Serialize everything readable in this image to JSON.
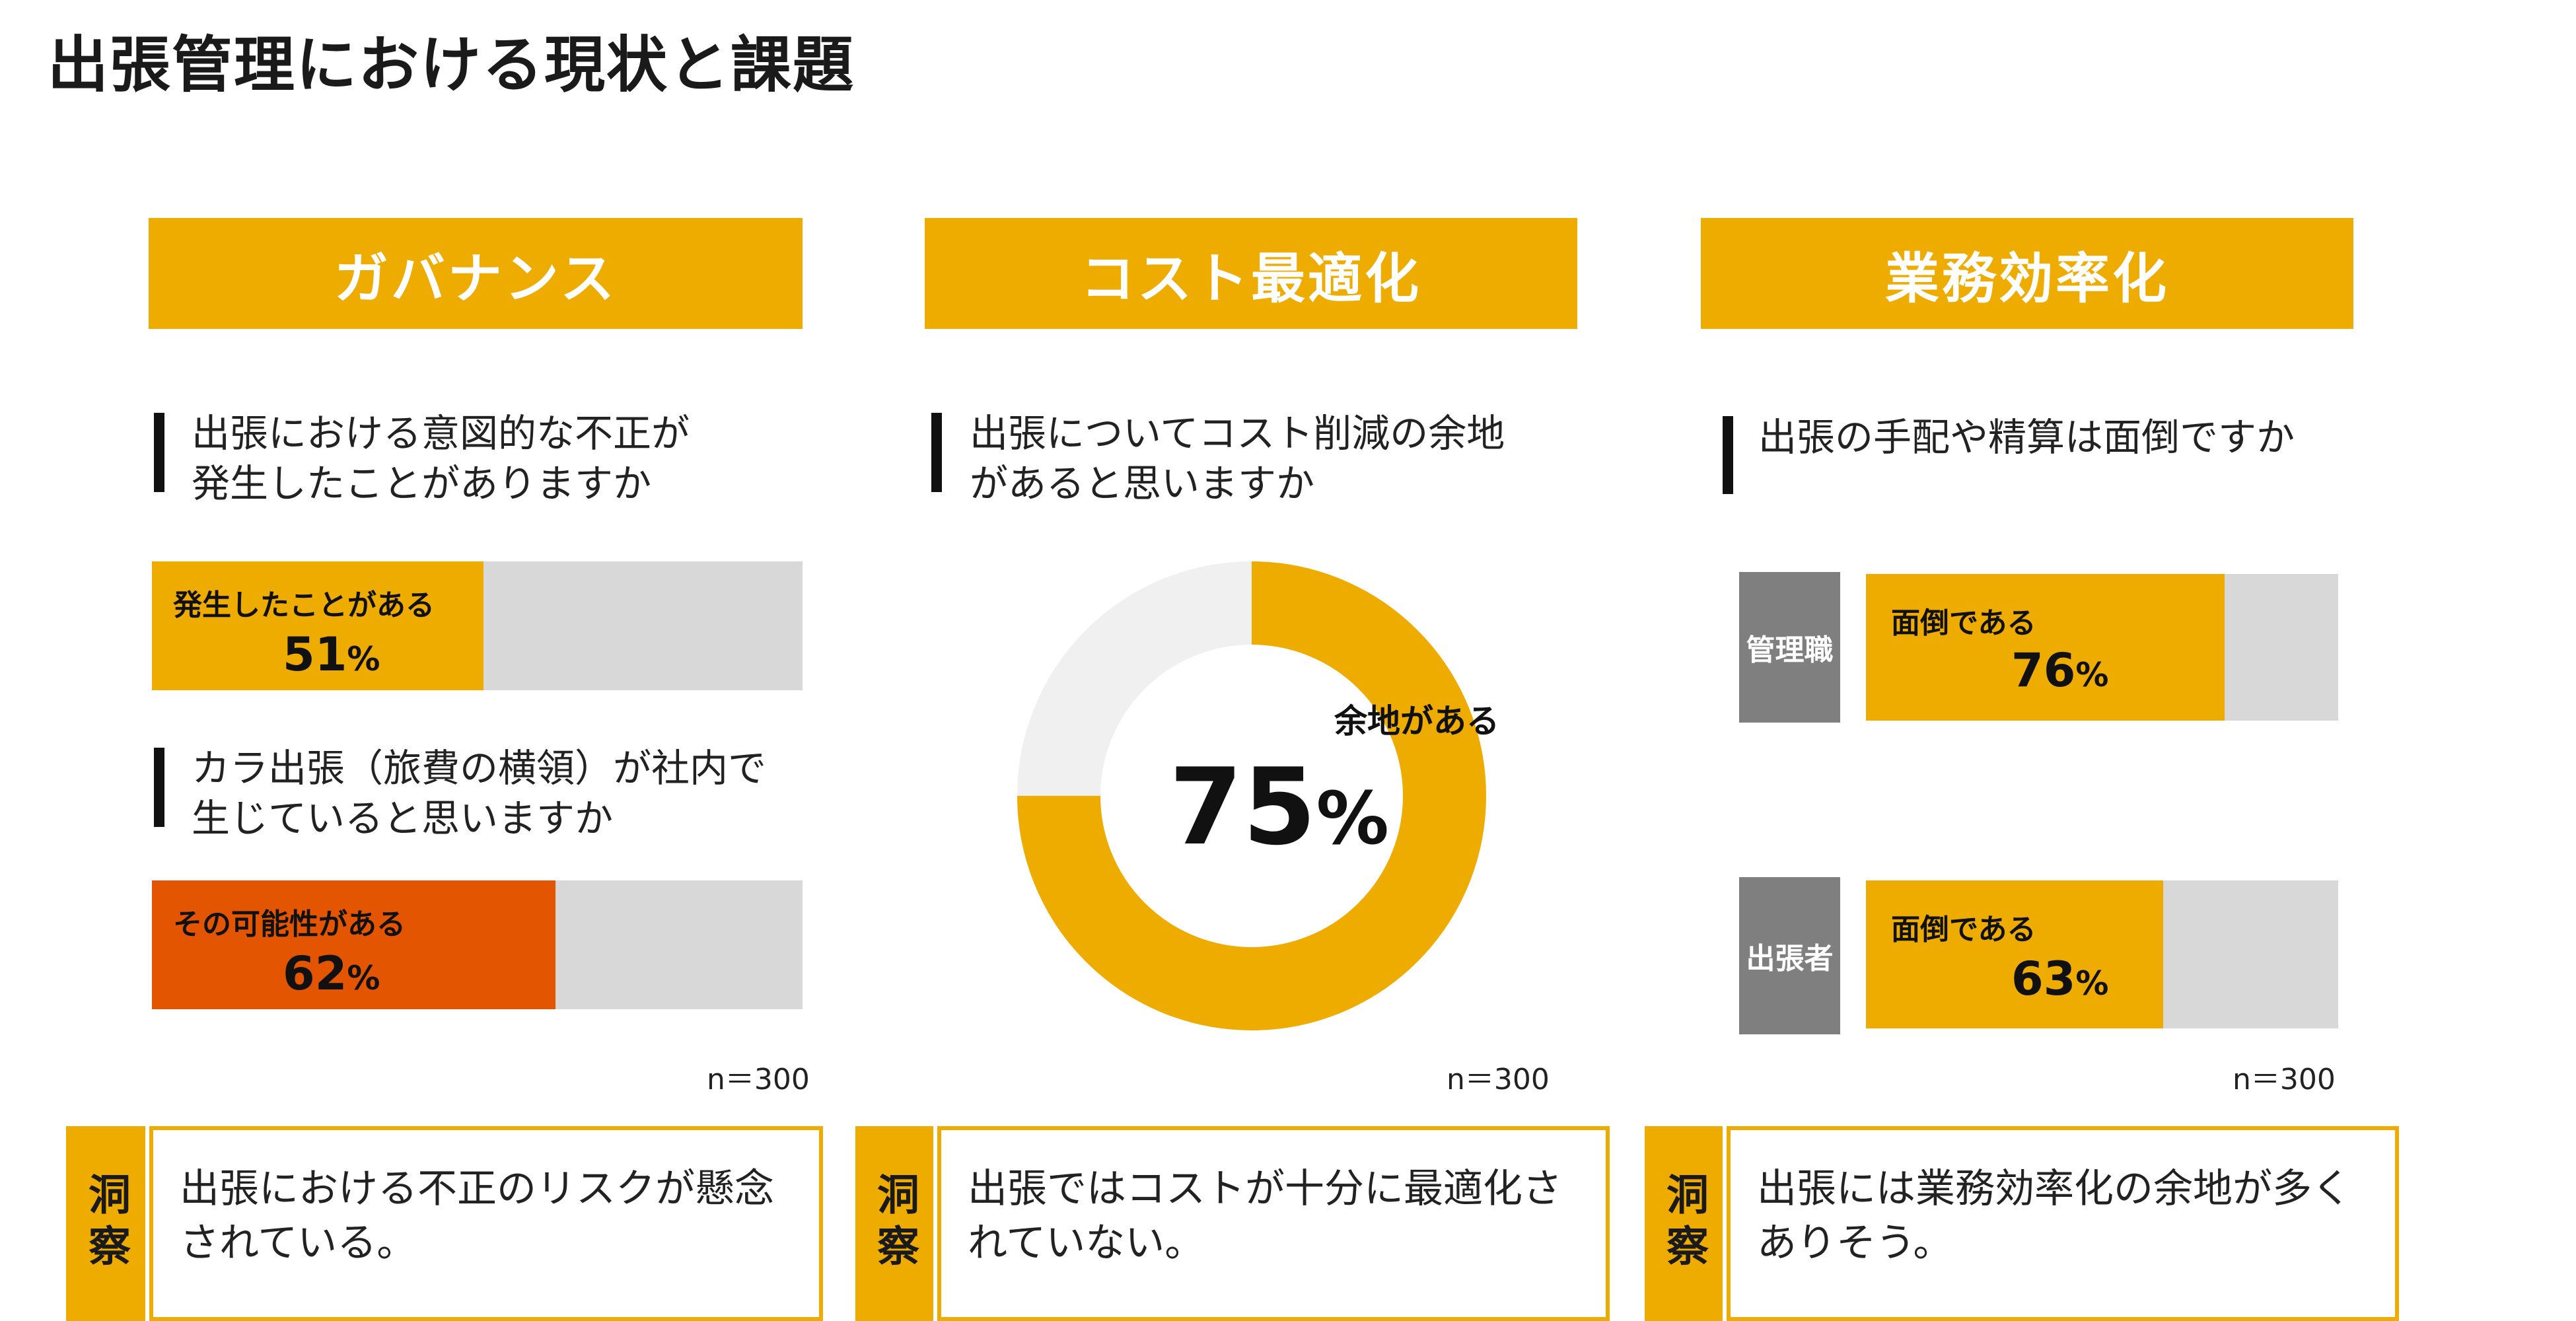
{
  "page": {
    "title": "出張管理における現状と課題"
  },
  "colors": {
    "accent": "#efac00",
    "alert": "#e35500",
    "track": "#d8d8d8",
    "tag_gray": "#7f7f7f",
    "donut_rest": "#f0f0f0"
  },
  "governance": {
    "header": "ガバナンス",
    "q1": {
      "line1": "出張における意図的な不正が",
      "line2": "発生したことがありますか"
    },
    "bar1": {
      "label": "発生したことがある",
      "value": "51",
      "unit": "%",
      "fraction": 0.51
    },
    "q2": {
      "line1": "カラ出張（旅費の横領）が社内で",
      "line2": "生じていると思いますか"
    },
    "bar2": {
      "label": "その可能性がある",
      "value": "62",
      "unit": "%",
      "fraction": 0.62
    },
    "n": "n＝300",
    "insight_tag": "洞察",
    "insight": {
      "line1": "出張における不正のリスクが懸念",
      "line2": "されている。"
    }
  },
  "cost": {
    "header": "コスト最適化",
    "q": {
      "line1": "出張についてコスト削減の余地",
      "line2": "があると思いますか"
    },
    "donut": {
      "label": "余地がある",
      "value": "75",
      "unit": "%",
      "fraction": 0.75
    },
    "n": "n＝300",
    "insight_tag": "洞察",
    "insight": {
      "line1": "出張ではコストが十分に最適化さ",
      "line2": "れていない。"
    }
  },
  "efficiency": {
    "header": "業務効率化",
    "q": {
      "line1": "出張の手配や精算は面倒ですか"
    },
    "bar1": {
      "tag": "管理職",
      "label": "面倒である",
      "value": "76",
      "unit": "%",
      "fraction": 0.76
    },
    "bar2": {
      "tag": "出張者",
      "label": "面倒である",
      "value": "63",
      "unit": "%",
      "fraction": 0.63
    },
    "n": "n＝300",
    "insight_tag": "洞察",
    "insight": {
      "line1": "出張には業務効率化の余地が多く",
      "line2": "ありそう。"
    }
  }
}
